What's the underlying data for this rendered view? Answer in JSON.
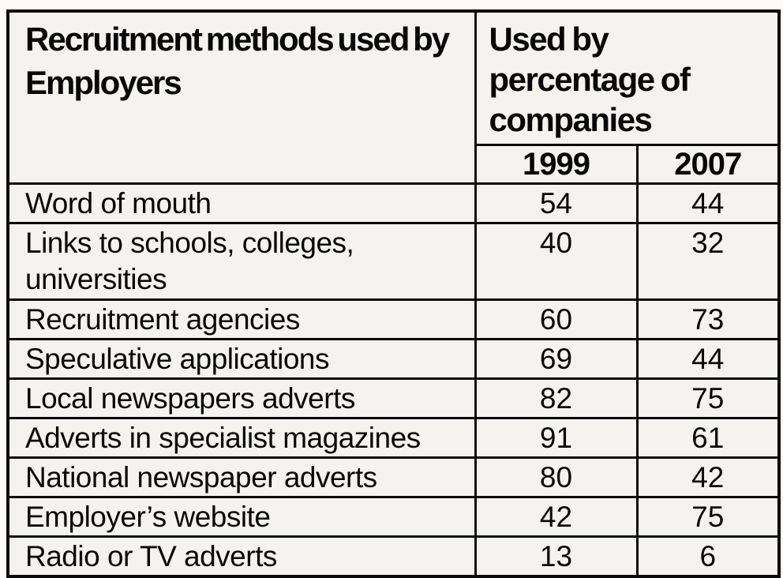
{
  "header": {
    "title": "Recruitment methods used by Employers",
    "value_header": "Used by percentage of companies"
  },
  "chart_data": {
    "type": "table",
    "title": "Recruitment methods used by Employers",
    "value_header": "Used by percentage of companies",
    "categories": [
      "Word of mouth",
      "Links to schools, colleges, universities",
      "Recruitment agencies",
      "Speculative applications",
      "Local newspapers adverts",
      "Adverts in specialist magazines",
      "National newspaper adverts",
      "Employer’s website",
      "Radio or TV adverts"
    ],
    "series": [
      {
        "name": "1999",
        "values": [
          54,
          40,
          60,
          69,
          82,
          91,
          80,
          42,
          13
        ]
      },
      {
        "name": "2007",
        "values": [
          44,
          32,
          73,
          44,
          75,
          61,
          42,
          75,
          6
        ]
      }
    ]
  }
}
